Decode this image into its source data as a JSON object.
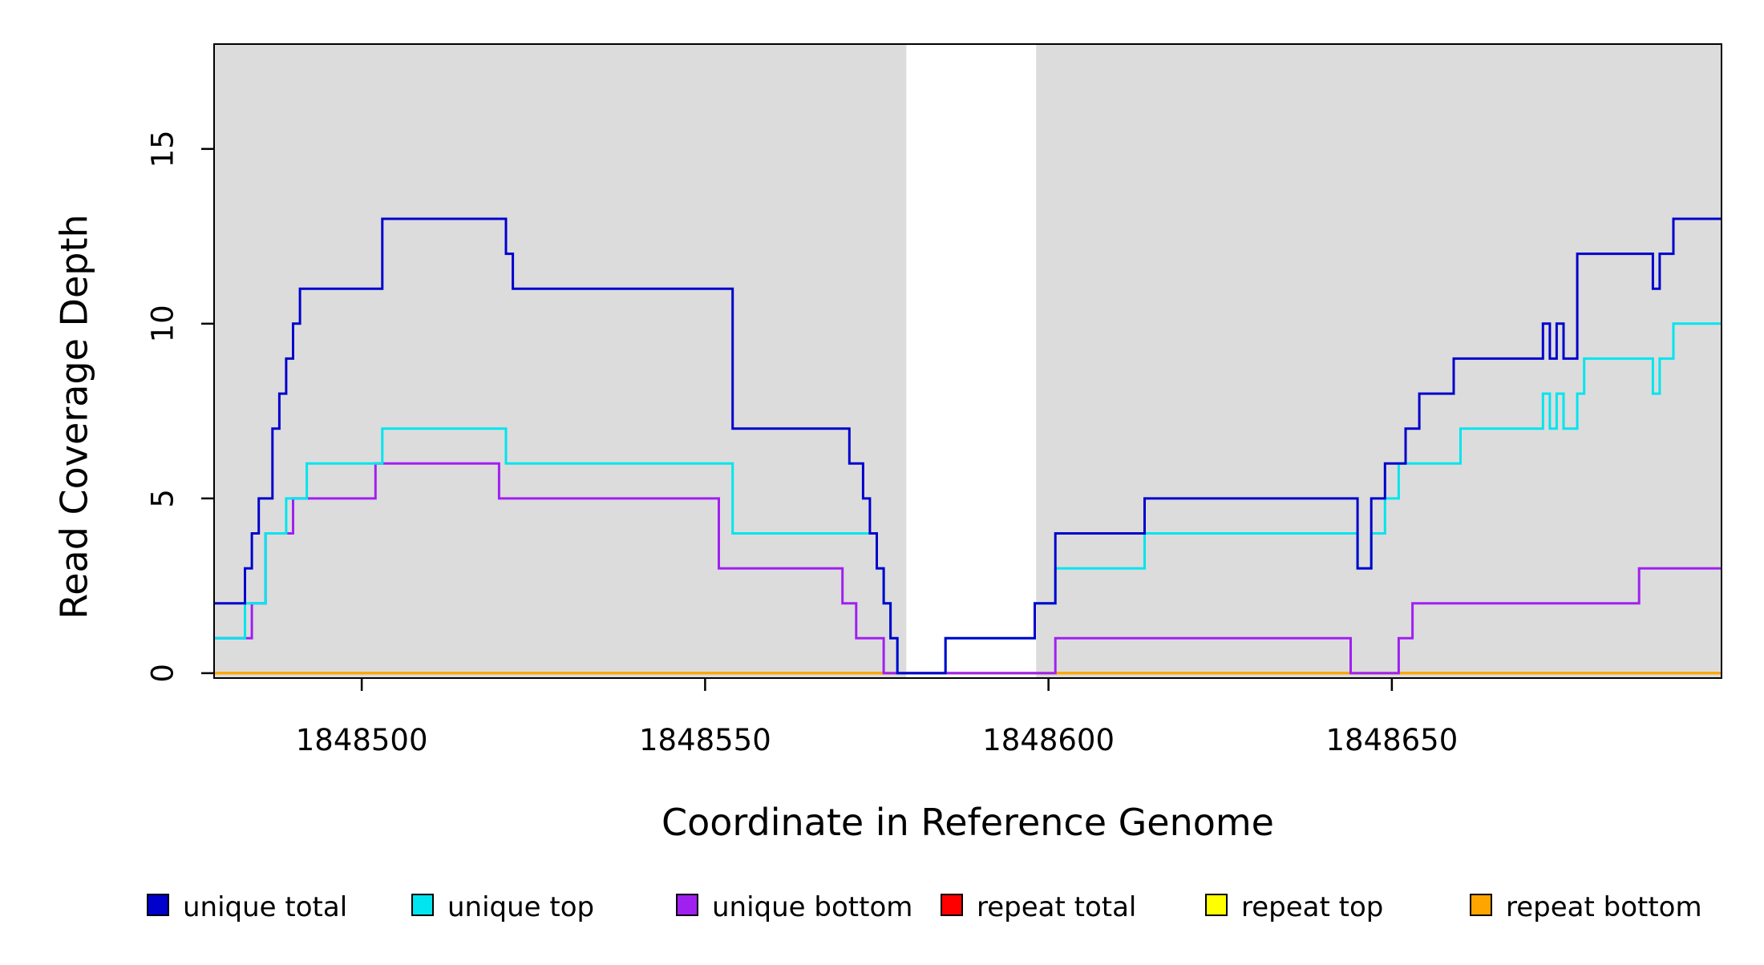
{
  "chart_data": {
    "type": "line",
    "step_style": "post",
    "title": "",
    "xlabel": "Coordinate in Reference Genome",
    "ylabel": "Read Coverage Depth",
    "xlim": [
      1848478.5,
      1848698
    ],
    "ylim": [
      -0.14,
      18.0
    ],
    "x_ticks": [
      1848500,
      1848550,
      1848600,
      1848650
    ],
    "y_ticks": [
      0,
      5,
      10,
      15
    ],
    "grid": "off",
    "plot_background": "#FFFFFF",
    "shaded_region_color": "#DCDCDC",
    "shaded_regions": [
      {
        "x0": 1848478.5,
        "x1": 1848579.3
      },
      {
        "x0": 1848598.2,
        "x1": 1848698
      }
    ],
    "series": [
      {
        "name": "repeat total",
        "color": "#FF0000",
        "points": [
          [
            1848478.5,
            0
          ]
        ]
      },
      {
        "name": "repeat top",
        "color": "#FFFF00",
        "points": [
          [
            1848478.5,
            0
          ]
        ]
      },
      {
        "name": "repeat bottom",
        "color": "#FFA500",
        "points": [
          [
            1848478.5,
            0
          ]
        ]
      },
      {
        "name": "unique bottom",
        "color": "#A020F0",
        "points": [
          [
            1848478.5,
            1
          ],
          [
            1848484,
            2
          ],
          [
            1848486,
            4
          ],
          [
            1848490,
            5
          ],
          [
            1848502,
            6
          ],
          [
            1848520,
            5
          ],
          [
            1848552,
            3
          ],
          [
            1848570,
            2
          ],
          [
            1848572,
            1
          ],
          [
            1848576,
            0
          ],
          [
            1848601,
            1
          ],
          [
            1848644,
            0
          ],
          [
            1848651,
            1
          ],
          [
            1848653,
            2
          ],
          [
            1848686,
            3
          ]
        ]
      },
      {
        "name": "unique top",
        "color": "#00E5EE",
        "points": [
          [
            1848478.5,
            1
          ],
          [
            1848483,
            2
          ],
          [
            1848486,
            4
          ],
          [
            1848489,
            5
          ],
          [
            1848492,
            6
          ],
          [
            1848503,
            7
          ],
          [
            1848521,
            6
          ],
          [
            1848554,
            4
          ],
          [
            1848575,
            3
          ],
          [
            1848576,
            2
          ],
          [
            1848577,
            1
          ],
          [
            1848578,
            0
          ],
          [
            1848585,
            1
          ],
          [
            1848598,
            2
          ],
          [
            1848601,
            3
          ],
          [
            1848614,
            4
          ],
          [
            1848645,
            3
          ],
          [
            1848647,
            4
          ],
          [
            1848649,
            5
          ],
          [
            1848651,
            6
          ],
          [
            1848660,
            7
          ],
          [
            1848672,
            8
          ],
          [
            1848673,
            7
          ],
          [
            1848674,
            8
          ],
          [
            1848675,
            7
          ],
          [
            1848677,
            8
          ],
          [
            1848678,
            9
          ],
          [
            1848688,
            8
          ],
          [
            1848689,
            9
          ],
          [
            1848691,
            10
          ]
        ]
      },
      {
        "name": "unique total",
        "color": "#0000CD",
        "points": [
          [
            1848478.5,
            2
          ],
          [
            1848483,
            3
          ],
          [
            1848484,
            4
          ],
          [
            1848485,
            5
          ],
          [
            1848487,
            7
          ],
          [
            1848488,
            8
          ],
          [
            1848489,
            9
          ],
          [
            1848490,
            10
          ],
          [
            1848491,
            11
          ],
          [
            1848503,
            13
          ],
          [
            1848521,
            12
          ],
          [
            1848522,
            11
          ],
          [
            1848554,
            7
          ],
          [
            1848571,
            6
          ],
          [
            1848573,
            5
          ],
          [
            1848574,
            4
          ],
          [
            1848575,
            3
          ],
          [
            1848576,
            2
          ],
          [
            1848577,
            1
          ],
          [
            1848578,
            0
          ],
          [
            1848585,
            1
          ],
          [
            1848598,
            2
          ],
          [
            1848601,
            4
          ],
          [
            1848614,
            5
          ],
          [
            1848645,
            3
          ],
          [
            1848647,
            5
          ],
          [
            1848649,
            6
          ],
          [
            1848652,
            7
          ],
          [
            1848654,
            8
          ],
          [
            1848659,
            9
          ],
          [
            1848672,
            10
          ],
          [
            1848673,
            9
          ],
          [
            1848674,
            10
          ],
          [
            1848675,
            9
          ],
          [
            1848677,
            12
          ],
          [
            1848688,
            11
          ],
          [
            1848689,
            12
          ],
          [
            1848691,
            13
          ]
        ]
      }
    ]
  },
  "legend": {
    "items": [
      {
        "label": "unique total",
        "color": "#0000CD"
      },
      {
        "label": "unique top",
        "color": "#00E5EE"
      },
      {
        "label": "unique bottom",
        "color": "#A020F0"
      },
      {
        "label": "repeat total",
        "color": "#FF0000"
      },
      {
        "label": "repeat top",
        "color": "#FFFF00"
      },
      {
        "label": "repeat bottom",
        "color": "#FFA500"
      }
    ]
  }
}
